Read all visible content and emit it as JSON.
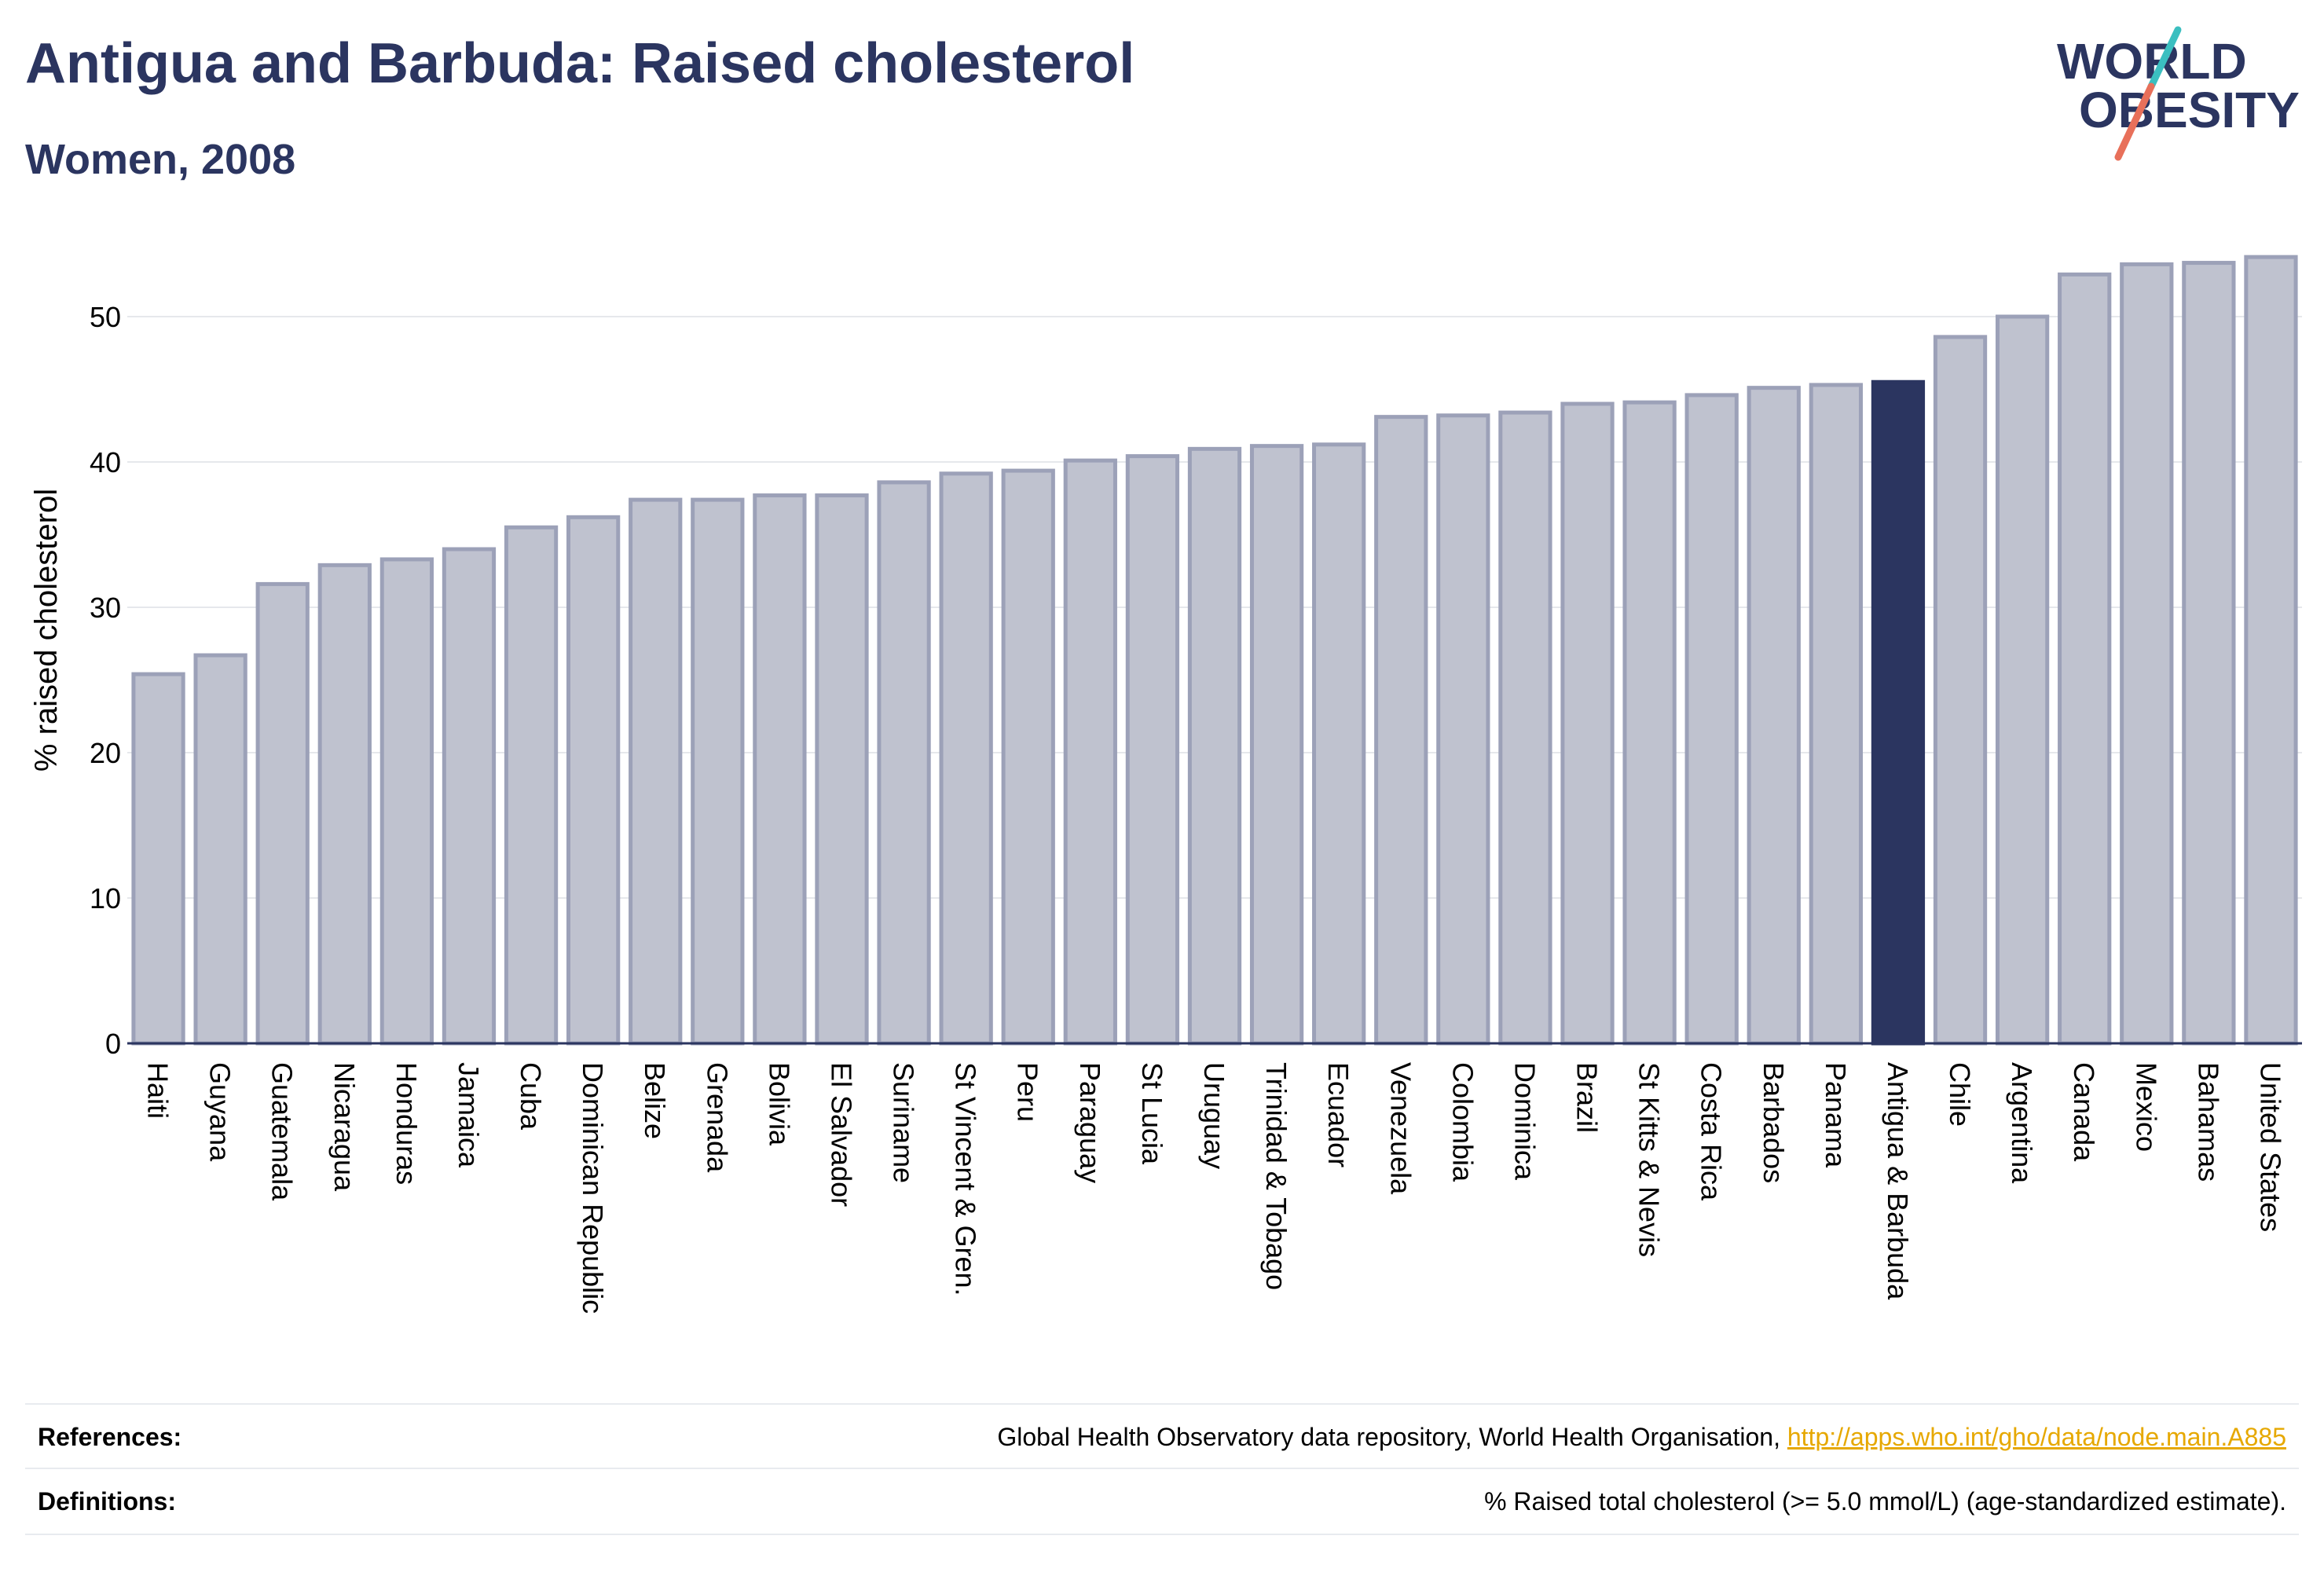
{
  "header": {
    "title": "Antigua and Barbuda: Raised cholesterol",
    "subtitle": "Women, 2008"
  },
  "logo": {
    "line1": "WORLD",
    "line2": "OBESITY",
    "colors": {
      "text": "#2b3560",
      "slash_teal": "#3bbfc0",
      "slash_red": "#e8705a"
    }
  },
  "chart_data": {
    "type": "bar",
    "ylabel": "% raised cholesterol",
    "ylim": [
      0,
      56
    ],
    "yticks": [
      0,
      10,
      20,
      30,
      40,
      50
    ],
    "grid": true,
    "highlight": "Antigua & Barbuda",
    "colors": {
      "bar": "#bfc2cf",
      "bar_border": "#9ca1b8",
      "highlight": "#2b3560"
    },
    "categories": [
      "Haiti",
      "Guyana",
      "Guatemala",
      "Nicaragua",
      "Honduras",
      "Jamaica",
      "Cuba",
      "Dominican Republic",
      "Belize",
      "Grenada",
      "Bolivia",
      "El Salvador",
      "Suriname",
      "St Vincent & Gren.",
      "Peru",
      "Paraguay",
      "St Lucia",
      "Uruguay",
      "Trinidad & Tobago",
      "Ecuador",
      "Venezuela",
      "Colombia",
      "Dominica",
      "Brazil",
      "St Kitts & Nevis",
      "Costa Rica",
      "Barbados",
      "Panama",
      "Antigua & Barbuda",
      "Chile",
      "Argentina",
      "Canada",
      "Mexico",
      "Bahamas",
      "United States"
    ],
    "values": [
      25.4,
      26.7,
      31.6,
      32.9,
      33.3,
      34.0,
      35.5,
      36.2,
      37.4,
      37.4,
      37.7,
      37.7,
      38.6,
      39.2,
      39.4,
      40.1,
      40.4,
      40.9,
      41.1,
      41.2,
      43.1,
      43.2,
      43.4,
      44.0,
      44.1,
      44.6,
      45.1,
      45.3,
      45.5,
      48.6,
      50.0,
      52.9,
      53.6,
      53.7,
      54.1
    ]
  },
  "references": {
    "label": "References:",
    "text": "Global Health Observatory data repository, World Health Organisation, ",
    "link": "http://apps.who.int/gho/data/node.main.A885"
  },
  "definitions": {
    "label": "Definitions:",
    "text": "% Raised total cholesterol (>= 5.0 mmol/L) (age-standardized estimate)."
  }
}
